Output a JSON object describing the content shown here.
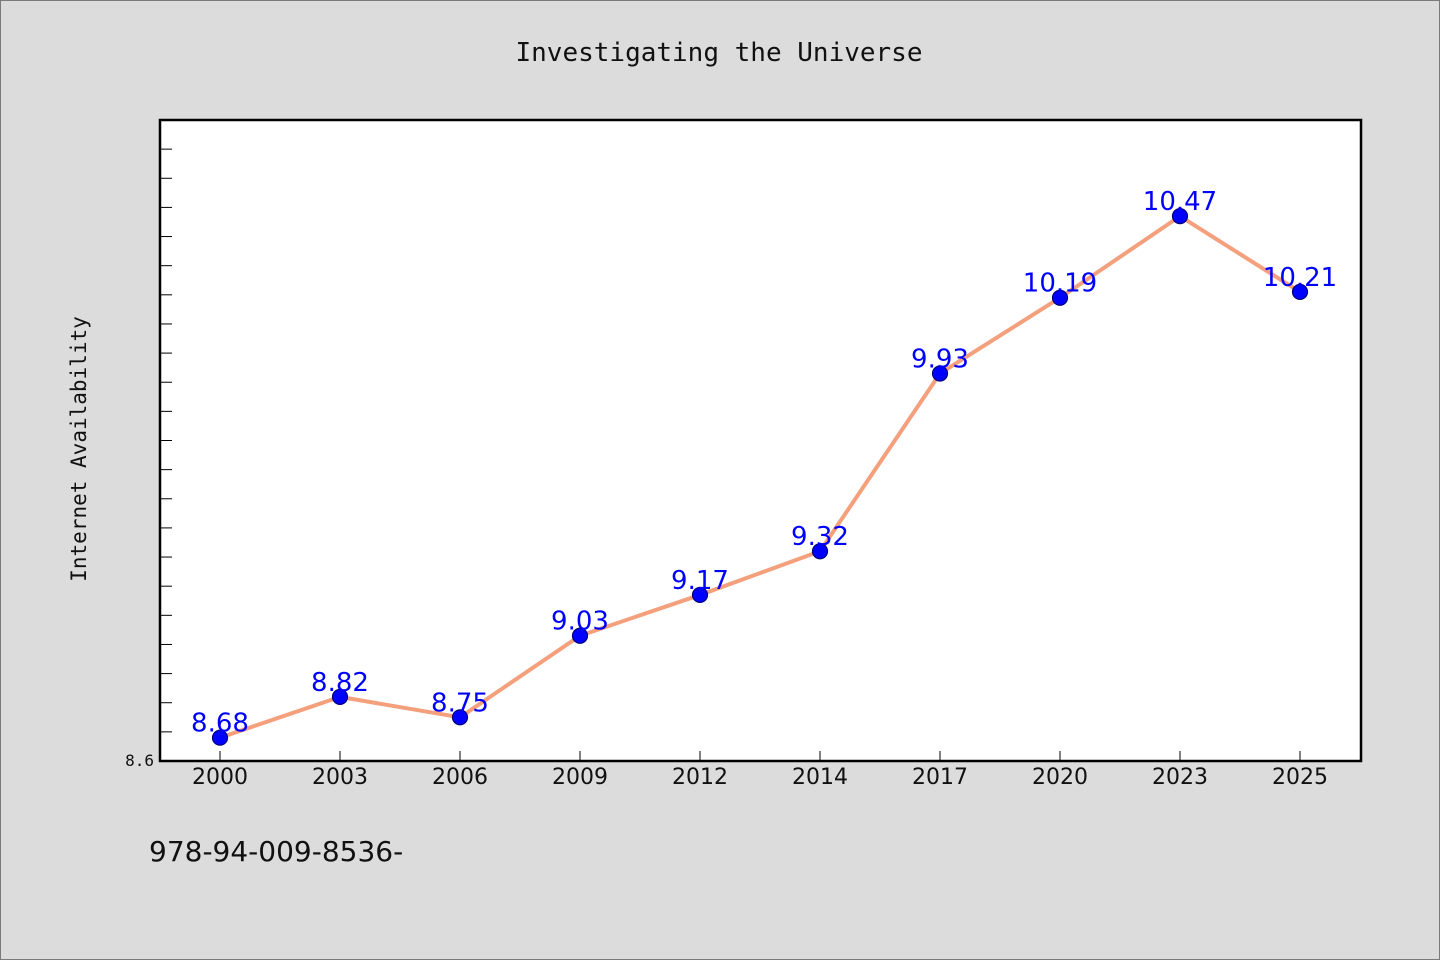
{
  "chart_data": {
    "type": "line",
    "title": "Investigating the Universe",
    "xlabel": "",
    "ylabel": "Internet Availability",
    "categories": [
      "2000",
      "2003",
      "2006",
      "2009",
      "2012",
      "2014",
      "2017",
      "2020",
      "2023",
      "2025"
    ],
    "series": [
      {
        "values": [
          8.68,
          8.82,
          8.75,
          9.03,
          9.17,
          9.32,
          9.93,
          10.19,
          10.47,
          10.21
        ],
        "labels": [
          "8.68",
          "8.82",
          "8.75",
          "9.03",
          "9.17",
          "9.32",
          "9.93",
          "10.19",
          "10.47",
          "10.21"
        ]
      }
    ],
    "ylim": [
      8.6,
      10.8
    ],
    "y_tick_labels": [
      "8.6"
    ],
    "y_minor_tick_step": 0.1,
    "grid": false,
    "legend": "none",
    "colors": {
      "line": "#f4a07c",
      "marker": "#0000ff",
      "marker_edge": "#00007a",
      "value_label": "#0000ff",
      "plot_background": "#ffffff",
      "figure_background": "#dcdcdc"
    }
  },
  "footer": {
    "text": "978-94-009-8536-"
  }
}
